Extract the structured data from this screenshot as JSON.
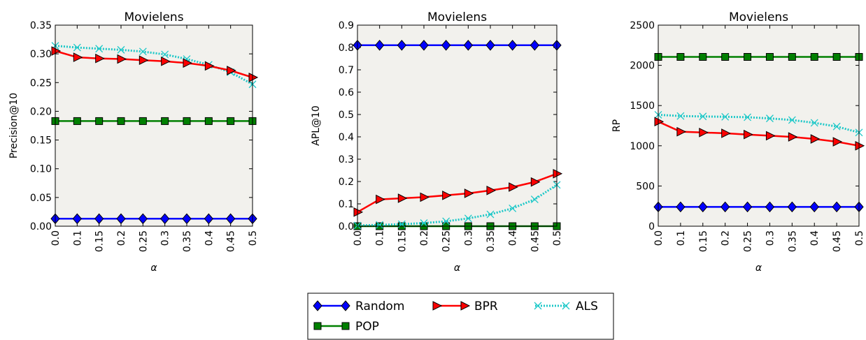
{
  "chart_data": [
    {
      "type": "line",
      "title": "Movielens",
      "xlabel": "α",
      "ylabel": "Precision@10",
      "x": [
        "0.0",
        "0.1",
        "0.15",
        "0.2",
        "0.25",
        "0.3",
        "0.35",
        "0.4",
        "0.45",
        "0.5"
      ],
      "ylim": [
        0,
        0.35
      ],
      "yticks": [
        "0.00",
        "0.05",
        "0.10",
        "0.15",
        "0.20",
        "0.25",
        "0.30",
        "0.35"
      ],
      "series": [
        {
          "name": "Random",
          "values": [
            0.013,
            0.013,
            0.013,
            0.013,
            0.013,
            0.013,
            0.013,
            0.013,
            0.013,
            0.013
          ]
        },
        {
          "name": "BPR",
          "values": [
            0.305,
            0.294,
            0.292,
            0.291,
            0.289,
            0.287,
            0.284,
            0.279,
            0.271,
            0.259
          ]
        },
        {
          "name": "ALS",
          "values": [
            0.314,
            0.311,
            0.309,
            0.307,
            0.304,
            0.299,
            0.291,
            0.281,
            0.268,
            0.247
          ]
        },
        {
          "name": "POP",
          "values": [
            0.183,
            0.183,
            0.183,
            0.183,
            0.183,
            0.183,
            0.183,
            0.183,
            0.183,
            0.183
          ]
        }
      ]
    },
    {
      "type": "line",
      "title": "Movielens",
      "xlabel": "α",
      "ylabel": "APL@10",
      "x": [
        "0.0",
        "0.1",
        "0.15",
        "0.2",
        "0.25",
        "0.3",
        "0.35",
        "0.4",
        "0.45",
        "0.5"
      ],
      "ylim": [
        0,
        0.9
      ],
      "yticks": [
        "0.0",
        "0.1",
        "0.2",
        "0.3",
        "0.4",
        "0.5",
        "0.6",
        "0.7",
        "0.8",
        "0.9"
      ],
      "series": [
        {
          "name": "Random",
          "values": [
            0.81,
            0.81,
            0.81,
            0.81,
            0.81,
            0.81,
            0.81,
            0.81,
            0.81,
            0.81
          ]
        },
        {
          "name": "BPR",
          "values": [
            0.063,
            0.12,
            0.125,
            0.13,
            0.138,
            0.147,
            0.16,
            0.175,
            0.198,
            0.235
          ]
        },
        {
          "name": "ALS",
          "values": [
            0.003,
            0.006,
            0.009,
            0.014,
            0.022,
            0.035,
            0.053,
            0.08,
            0.12,
            0.185
          ]
        },
        {
          "name": "POP",
          "values": [
            0.0,
            0.0,
            0.0,
            0.0,
            0.0,
            0.0,
            0.0,
            0.0,
            0.0,
            0.0
          ]
        }
      ]
    },
    {
      "type": "line",
      "title": "Movielens",
      "xlabel": "α",
      "ylabel": "RP",
      "x": [
        "0.0",
        "0.1",
        "0.15",
        "0.2",
        "0.25",
        "0.3",
        "0.35",
        "0.4",
        "0.45",
        "0.5"
      ],
      "ylim": [
        0,
        2500
      ],
      "yticks": [
        "0",
        "500",
        "1000",
        "1500",
        "2000",
        "2500"
      ],
      "series": [
        {
          "name": "Random",
          "values": [
            240,
            240,
            240,
            240,
            240,
            240,
            240,
            240,
            240,
            240
          ]
        },
        {
          "name": "BPR",
          "values": [
            1300,
            1175,
            1165,
            1155,
            1140,
            1125,
            1110,
            1085,
            1050,
            1000
          ]
        },
        {
          "name": "ALS",
          "values": [
            1385,
            1370,
            1365,
            1360,
            1355,
            1340,
            1320,
            1285,
            1240,
            1165
          ]
        },
        {
          "name": "POP",
          "values": [
            2105,
            2105,
            2105,
            2105,
            2105,
            2105,
            2105,
            2105,
            2105,
            2105
          ]
        }
      ]
    }
  ],
  "legend": {
    "entries": [
      "Random",
      "BPR",
      "ALS",
      "POP"
    ]
  },
  "series_styles": {
    "Random": {
      "color": "#0000ff",
      "marker": "diamond",
      "line": "solid"
    },
    "BPR": {
      "color": "#ff0000",
      "marker": "triangle-right",
      "line": "solid"
    },
    "ALS": {
      "color": "#1ec8c8",
      "marker": "x",
      "line": "dotted"
    },
    "POP": {
      "color": "#008000",
      "marker": "square",
      "line": "solid"
    }
  },
  "plot_background": "#f2f1ed",
  "grid": false
}
